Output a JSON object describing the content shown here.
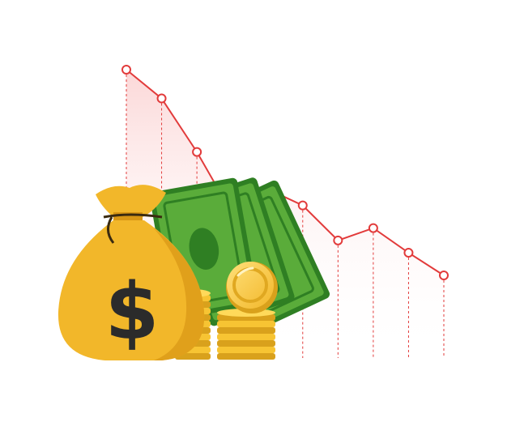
{
  "illustration": {
    "bag_symbol": "$",
    "icons": [
      "money-bag-icon",
      "banknote-icon",
      "gold-coin-icon"
    ]
  },
  "trend": {
    "direction": "decreasing",
    "relative_levels": [
      1.0,
      0.86,
      0.6,
      0.3,
      0.42,
      0.34,
      0.17,
      0.23,
      0.11,
      0.0
    ]
  },
  "colors": {
    "line": "#e23b3b",
    "area": "#fde3e3",
    "bag": "#f2b72a",
    "bag_shadow": "#d89615",
    "cash": "#5aac3a",
    "cash_dark": "#2f7f23",
    "coin": "#f7c433",
    "coin_dark": "#d9a11c"
  }
}
